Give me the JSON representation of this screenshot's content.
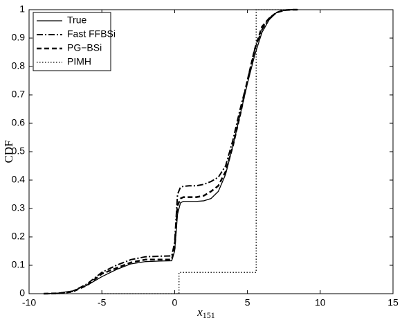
{
  "chart_data": {
    "type": "line",
    "ylabel": "CDF",
    "xlabel": "x",
    "xlabel_subscript": "151",
    "xlim": [
      -10,
      15
    ],
    "xticks": [
      -10,
      -5,
      0,
      5,
      10,
      15
    ],
    "ylim": [
      0,
      1
    ],
    "yticks": [
      0,
      0.1,
      0.2,
      0.3,
      0.4,
      0.5,
      0.6,
      0.7,
      0.8,
      0.9,
      1
    ],
    "grid": false,
    "legend": "upper-left",
    "series": [
      {
        "name": "True",
        "color": "#000000",
        "linestyle": "solid",
        "x": [
          -9,
          -8,
          -7,
          -6,
          -5,
          -4,
          -3,
          -2,
          -1,
          -0.2,
          0,
          0.2,
          0.4,
          0.6,
          1,
          1.5,
          2,
          2.5,
          3,
          3.5,
          4,
          4.5,
          5,
          5.5,
          6,
          6.5,
          7,
          7.5,
          8,
          8.5
        ],
        "values": [
          0,
          0.002,
          0.01,
          0.03,
          0.06,
          0.085,
          0.105,
          0.113,
          0.115,
          0.116,
          0.15,
          0.28,
          0.32,
          0.325,
          0.325,
          0.325,
          0.327,
          0.335,
          0.36,
          0.42,
          0.52,
          0.63,
          0.74,
          0.84,
          0.92,
          0.965,
          0.99,
          0.997,
          1,
          1
        ]
      },
      {
        "name": "Fast FFBSi",
        "color": "#000000",
        "linestyle": "dashdot",
        "x": [
          -9,
          -8,
          -7,
          -6,
          -5,
          -4,
          -3,
          -2,
          -1,
          -0.2,
          0,
          0.2,
          0.4,
          0.6,
          1,
          1.5,
          2,
          2.5,
          3,
          3.5,
          4,
          4.5,
          5,
          5.5,
          6,
          6.5,
          7,
          7.5,
          8,
          8.5
        ],
        "values": [
          0,
          0.001,
          0.008,
          0.035,
          0.075,
          0.1,
          0.12,
          0.13,
          0.132,
          0.133,
          0.18,
          0.35,
          0.375,
          0.378,
          0.38,
          0.38,
          0.385,
          0.395,
          0.41,
          0.45,
          0.54,
          0.65,
          0.75,
          0.86,
          0.93,
          0.97,
          0.99,
          0.997,
          1,
          1
        ]
      },
      {
        "name": "PG−BSi",
        "color": "#000000",
        "linestyle": "dashed",
        "x": [
          -9,
          -8,
          -7,
          -6,
          -5,
          -4,
          -3,
          -2,
          -1,
          -0.2,
          0,
          0.2,
          0.4,
          0.6,
          1,
          1.5,
          2,
          2.5,
          3,
          3.5,
          4,
          4.5,
          5,
          5.5,
          6,
          6.5,
          7,
          7.5,
          8,
          8.5
        ],
        "values": [
          0,
          0.001,
          0.007,
          0.03,
          0.07,
          0.09,
          0.11,
          0.12,
          0.12,
          0.12,
          0.16,
          0.31,
          0.335,
          0.34,
          0.34,
          0.34,
          0.345,
          0.36,
          0.38,
          0.43,
          0.52,
          0.63,
          0.75,
          0.86,
          0.94,
          0.97,
          0.99,
          0.998,
          1,
          1
        ]
      },
      {
        "name": "PIMH",
        "color": "#000000",
        "linestyle": "dotted",
        "x": [
          -5,
          0.3,
          0.3,
          5.6,
          5.6,
          8.5
        ],
        "values": [
          0,
          0,
          0.075,
          0.075,
          1,
          1
        ]
      }
    ]
  }
}
